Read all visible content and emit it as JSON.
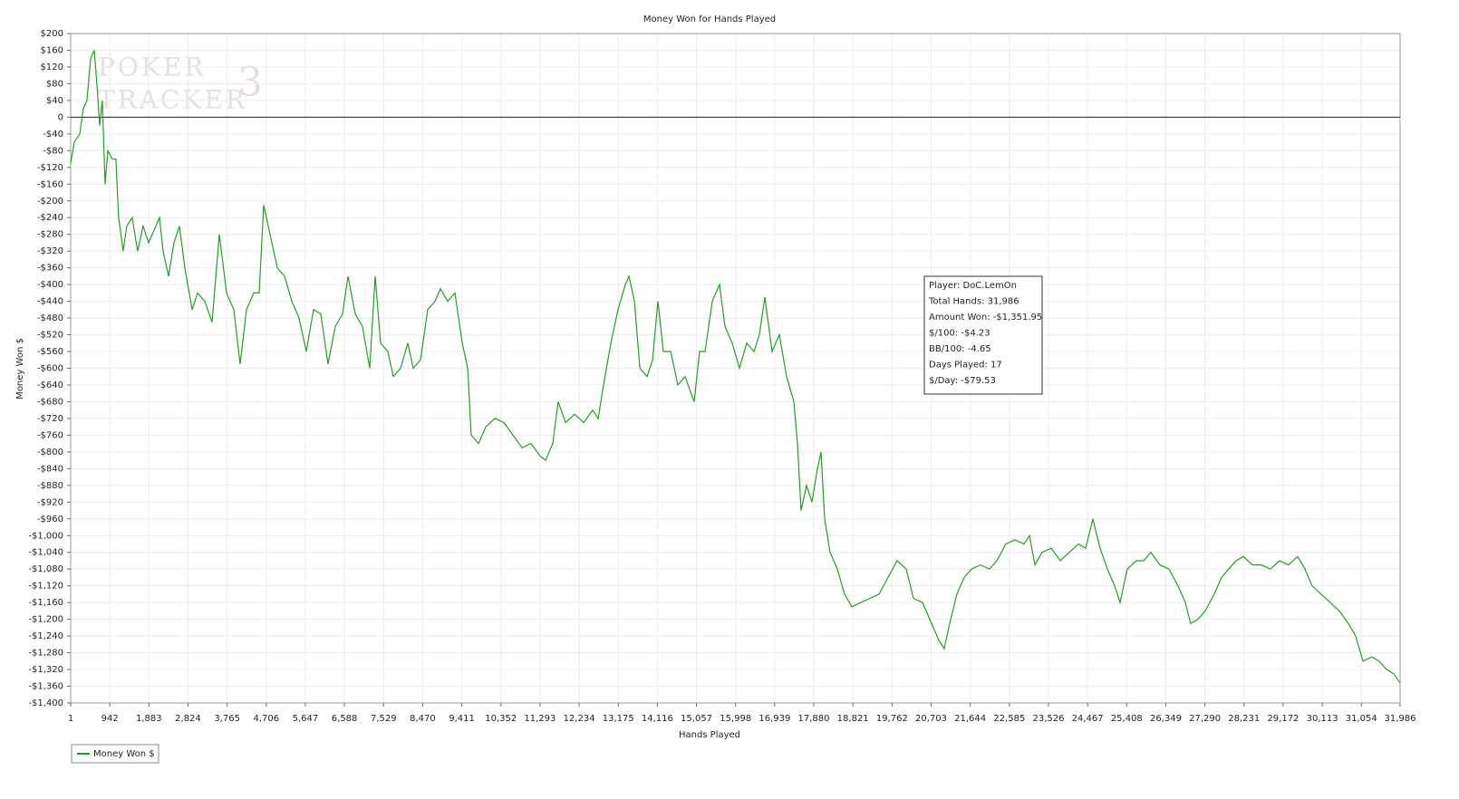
{
  "chart_data": {
    "type": "line",
    "title": "Money Won for Hands Played",
    "x_label": "Hands Played",
    "y_label": "Money Won $",
    "watermark": [
      "POKER",
      "TRACKER",
      "3"
    ],
    "info_box": [
      "Player: DoC.LemOn",
      "Total Hands: 31,986",
      "Amount Won: -$1,351.95",
      "$/100: -$4.23",
      "BB/100: -4.65",
      "Days Played: 17",
      "$/Day: -$79.53"
    ],
    "grid": true,
    "legend": "bottom-left",
    "xlim": [
      1,
      31986
    ],
    "ylim": [
      -1400,
      200
    ],
    "xticks": [
      1,
      {
        "value": 942,
        "label": "942"
      },
      {
        "value": 1883,
        "label": "1,883"
      },
      {
        "value": 2824,
        "label": "2,824"
      },
      {
        "value": 3765,
        "label": "3,765"
      },
      {
        "value": 4706,
        "label": "4,706"
      },
      {
        "value": 5647,
        "label": "5,647"
      },
      {
        "value": 6588,
        "label": "6,588"
      },
      {
        "value": 7529,
        "label": "7,529"
      },
      {
        "value": 8470,
        "label": "8,470"
      },
      {
        "value": 9411,
        "label": "9,411"
      },
      {
        "value": 10352,
        "label": "10,352"
      },
      {
        "value": 11293,
        "label": "11,293"
      },
      {
        "value": 12234,
        "label": "12,234"
      },
      {
        "value": 13175,
        "label": "13,175"
      },
      {
        "value": 14116,
        "label": "14,116"
      },
      {
        "value": 15057,
        "label": "15,057"
      },
      {
        "value": 15998,
        "label": "15,998"
      },
      {
        "value": 16939,
        "label": "16,939"
      },
      {
        "value": 17880,
        "label": "17,880"
      },
      {
        "value": 18821,
        "label": "18,821"
      },
      {
        "value": 19762,
        "label": "19,762"
      },
      {
        "value": 20703,
        "label": "20,703"
      },
      {
        "value": 21644,
        "label": "21,644"
      },
      {
        "value": 22585,
        "label": "22,585"
      },
      {
        "value": 23526,
        "label": "23,526"
      },
      {
        "value": 24467,
        "label": "24,467"
      },
      {
        "value": 25408,
        "label": "25,408"
      },
      {
        "value": 26349,
        "label": "26,349"
      },
      {
        "value": 27290,
        "label": "27,290"
      },
      {
        "value": 28231,
        "label": "28,231"
      },
      {
        "value": 29172,
        "label": "29,172"
      },
      {
        "value": 30113,
        "label": "30,113"
      },
      {
        "value": 31054,
        "label": "31,054"
      },
      {
        "value": 31986,
        "label": "31,986"
      }
    ],
    "yticks": [
      {
        "value": 200,
        "label": "$200"
      },
      {
        "value": 160,
        "label": "$160"
      },
      {
        "value": 120,
        "label": "$120"
      },
      {
        "value": 80,
        "label": "$80"
      },
      {
        "value": 40,
        "label": "$40"
      },
      0,
      {
        "value": -40,
        "label": "-$40"
      },
      {
        "value": -80,
        "label": "-$80"
      },
      {
        "value": -120,
        "label": "-$120"
      },
      {
        "value": -160,
        "label": "-$160"
      },
      {
        "value": -200,
        "label": "-$200"
      },
      {
        "value": -240,
        "label": "-$240"
      },
      {
        "value": -280,
        "label": "-$280"
      },
      {
        "value": -320,
        "label": "-$320"
      },
      {
        "value": -360,
        "label": "-$360"
      },
      {
        "value": -400,
        "label": "-$400"
      },
      {
        "value": -440,
        "label": "-$440"
      },
      {
        "value": -480,
        "label": "-$480"
      },
      {
        "value": -520,
        "label": "-$520"
      },
      {
        "value": -560,
        "label": "-$560"
      },
      {
        "value": -600,
        "label": "-$600"
      },
      {
        "value": -640,
        "label": "-$640"
      },
      {
        "value": -680,
        "label": "-$680"
      },
      {
        "value": -720,
        "label": "-$720"
      },
      {
        "value": -760,
        "label": "-$760"
      },
      {
        "value": -800,
        "label": "-$800"
      },
      {
        "value": -840,
        "label": "-$840"
      },
      {
        "value": -880,
        "label": "-$880"
      },
      {
        "value": -920,
        "label": "-$920"
      },
      {
        "value": -960,
        "label": "-$960"
      },
      {
        "value": -1000,
        "label": "-$1,000"
      },
      {
        "value": -1040,
        "label": "-$1,040"
      },
      {
        "value": -1080,
        "label": "-$1,080"
      },
      {
        "value": -1120,
        "label": "-$1,120"
      },
      {
        "value": -1160,
        "label": "-$1,160"
      },
      {
        "value": -1200,
        "label": "-$1,200"
      },
      {
        "value": -1240,
        "label": "-$1,240"
      },
      {
        "value": -1280,
        "label": "-$1,280"
      },
      {
        "value": -1320,
        "label": "-$1,320"
      },
      {
        "value": -1360,
        "label": "-$1,360"
      },
      {
        "value": -1400,
        "label": "-$1,400"
      }
    ],
    "x": [
      1,
      87,
      218,
      305,
      392,
      480,
      567,
      632,
      698,
      763,
      829,
      894,
      1003,
      1090,
      1155,
      1264,
      1352,
      1482,
      1613,
      1744,
      1875,
      2006,
      2137,
      2225,
      2355,
      2486,
      2617,
      2748,
      2922,
      3053,
      3228,
      3402,
      3577,
      3751,
      3926,
      4079,
      4231,
      4406,
      4536,
      4644,
      4797,
      4972,
      5146,
      5321,
      5495,
      5670,
      5844,
      6018,
      6193,
      6367,
      6542,
      6673,
      6847,
      7022,
      7196,
      7327,
      7458,
      7632,
      7763,
      7938,
      8112,
      8243,
      8418,
      8592,
      8766,
      8897,
      9072,
      9246,
      9421,
      9552,
      9639,
      9813,
      9988,
      10206,
      10424,
      10642,
      10860,
      11078,
      11296,
      11427,
      11601,
      11732,
      11907,
      12125,
      12343,
      12561,
      12692,
      12822,
      12997,
      13171,
      13346,
      13433,
      13564,
      13695,
      13869,
      14000,
      14130,
      14261,
      14436,
      14610,
      14784,
      15002,
      15133,
      15264,
      15438,
      15612,
      15743,
      15918,
      16092,
      16266,
      16441,
      16572,
      16703,
      16877,
      17051,
      17226,
      17400,
      17487,
      17574,
      17705,
      17836,
      17967,
      18054,
      18141,
      18272,
      18446,
      18621,
      18795,
      19013,
      19231,
      19449,
      19667,
      19885,
      20103,
      20277,
      20495,
      20713,
      20888,
      21018,
      21149,
      21323,
      21498,
      21672,
      21890,
      22108,
      22283,
      22501,
      22719,
      22937,
      23068,
      23199,
      23373,
      23591,
      23809,
      24027,
      24245,
      24420,
      24594,
      24768,
      24943,
      25117,
      25248,
      25422,
      25640,
      25815,
      25989,
      26207,
      26425,
      26643,
      26818,
      26948,
      27123,
      27297,
      27515,
      27690,
      27864,
      28039,
      28213,
      28431,
      28649,
      28867,
      29085,
      29303,
      29521,
      29696,
      29870,
      30088,
      30306,
      30524,
      30742,
      30917,
      31091,
      31309,
      31483,
      31658,
      31832,
      31986
    ],
    "series": [
      {
        "name": "Money Won $",
        "color": "#22a022",
        "values": [
          -110,
          -60,
          -40,
          20,
          40,
          140,
          160,
          80,
          -20,
          40,
          -160,
          -80,
          -100,
          -100,
          -240,
          -320,
          -260,
          -240,
          -320,
          -260,
          -300,
          -270,
          -240,
          -320,
          -380,
          -300,
          -260,
          -360,
          -460,
          -420,
          -440,
          -490,
          -280,
          -420,
          -460,
          -590,
          -460,
          -420,
          -420,
          -210,
          -280,
          -360,
          -380,
          -440,
          -480,
          -560,
          -460,
          -470,
          -590,
          -500,
          -470,
          -380,
          -470,
          -500,
          -600,
          -380,
          -540,
          -560,
          -620,
          -600,
          -540,
          -600,
          -580,
          -460,
          -440,
          -410,
          -440,
          -420,
          -540,
          -600,
          -760,
          -780,
          -740,
          -720,
          -730,
          -760,
          -790,
          -780,
          -810,
          -820,
          -780,
          -680,
          -730,
          -710,
          -730,
          -700,
          -720,
          -640,
          -540,
          -460,
          -400,
          -380,
          -440,
          -600,
          -620,
          -580,
          -440,
          -560,
          -560,
          -640,
          -620,
          -680,
          -560,
          -560,
          -440,
          -400,
          -500,
          -540,
          -600,
          -540,
          -560,
          -520,
          -430,
          -560,
          -520,
          -620,
          -680,
          -780,
          -940,
          -880,
          -920,
          -840,
          -800,
          -960,
          -1040,
          -1080,
          -1140,
          -1170,
          -1160,
          -1150,
          -1140,
          -1100,
          -1060,
          -1080,
          -1150,
          -1160,
          -1210,
          -1250,
          -1270,
          -1210,
          -1140,
          -1100,
          -1080,
          -1070,
          -1080,
          -1060,
          -1020,
          -1010,
          -1020,
          -1000,
          -1070,
          -1040,
          -1030,
          -1060,
          -1040,
          -1020,
          -1030,
          -960,
          -1030,
          -1080,
          -1120,
          -1160,
          -1080,
          -1060,
          -1060,
          -1040,
          -1070,
          -1080,
          -1120,
          -1160,
          -1210,
          -1200,
          -1180,
          -1140,
          -1100,
          -1080,
          -1060,
          -1050,
          -1070,
          -1070,
          -1080,
          -1060,
          -1070,
          -1050,
          -1080,
          -1120,
          -1140,
          -1160,
          -1180,
          -1210,
          -1240,
          -1300,
          -1290,
          -1300,
          -1320,
          -1330,
          -1352
        ]
      }
    ]
  }
}
